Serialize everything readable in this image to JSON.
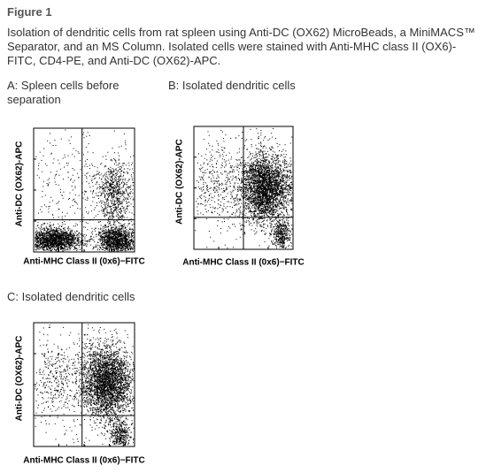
{
  "header": {
    "title": "Figure 1"
  },
  "caption": "Isolation of dendritic cells from rat spleen using Anti-DC (OX62) MicroBeads, a MiniMACS™ Separator, and an MS Column. Isolated cells were stained with Anti-MHC class II (OX6)-FITC, CD4-PE, and Anti-DC (OX62)-APC.",
  "panels": [
    {
      "label": "A: Spleen cells before separation",
      "x_axis": "Anti-MHC Class II (0x6)−FITC",
      "y_axis": "Anti-DC (OX62)-APC"
    },
    {
      "label": "B: Isolated dendritic cells",
      "x_axis": "Anti-MHC Class II (0x6)−FITC",
      "y_axis": "Anti-DC (OX62)-APC"
    },
    {
      "label": "C: Isolated dendritic cells",
      "x_axis": "Anti-MHC Class II (0x6)−FITC",
      "y_axis": "Anti-DC (OX62)-APC"
    }
  ]
}
